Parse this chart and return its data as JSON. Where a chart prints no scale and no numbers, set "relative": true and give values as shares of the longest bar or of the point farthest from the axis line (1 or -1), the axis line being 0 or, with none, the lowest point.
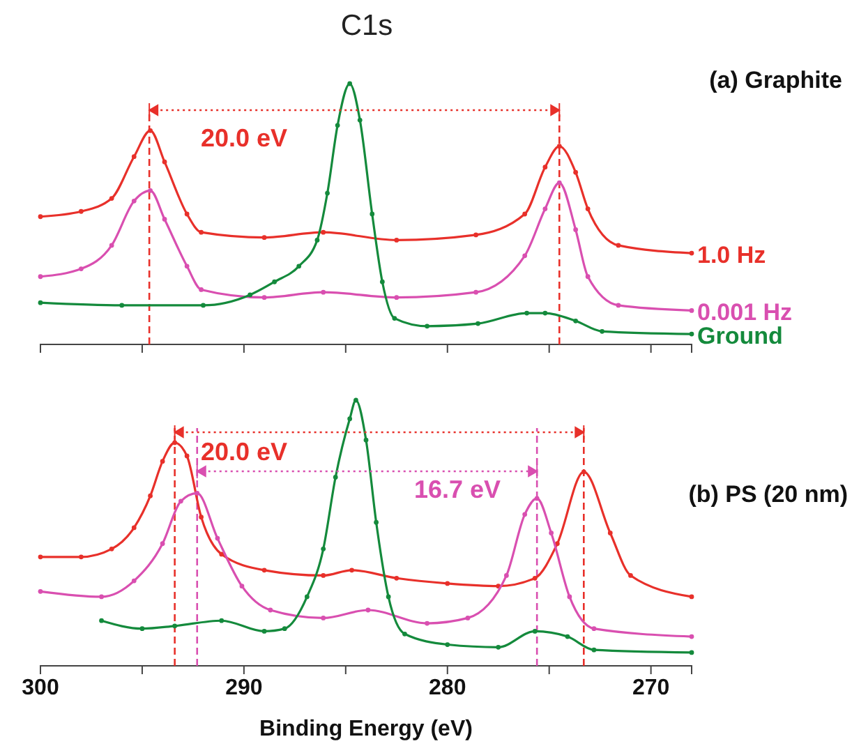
{
  "chart_data": [
    {
      "type": "line",
      "title": "C1s",
      "relative": true,
      "marker": "circle",
      "line_style": "solid",
      "tick_labels": false,
      "xlim": [
        300,
        268
      ],
      "xticks": [
        {
          "value": 300,
          "label": null
        },
        {
          "value": 295,
          "label": null
        },
        {
          "value": 290,
          "label": null
        },
        {
          "value": 285,
          "label": null
        },
        {
          "value": 280,
          "label": null
        },
        {
          "value": 275,
          "label": null
        },
        {
          "value": 270,
          "label": null
        }
      ],
      "series": [
        {
          "name": "1.0 Hz",
          "color": "#e8302a",
          "x": [
            300,
            298,
            296.5,
            295.4,
            294.6,
            293.9,
            292.8,
            292.1,
            289,
            286.1,
            282.5,
            278.6,
            276.2,
            275.2,
            274.5,
            273.7,
            273.1,
            271.6,
            268
          ],
          "values": [
            0.49,
            0.51,
            0.56,
            0.72,
            0.82,
            0.7,
            0.5,
            0.43,
            0.41,
            0.43,
            0.4,
            0.42,
            0.5,
            0.68,
            0.76,
            0.66,
            0.52,
            0.38,
            0.35
          ]
        },
        {
          "name": "0.001 Hz",
          "color": "#d94fb0",
          "x": [
            300,
            298,
            296.5,
            295.4,
            294.6,
            293.9,
            292.8,
            292.1,
            289,
            286.1,
            282.5,
            278.6,
            276.2,
            275.2,
            274.5,
            273.7,
            273.1,
            271.6,
            268
          ],
          "values": [
            0.26,
            0.29,
            0.38,
            0.55,
            0.59,
            0.48,
            0.3,
            0.21,
            0.18,
            0.2,
            0.18,
            0.2,
            0.34,
            0.52,
            0.62,
            0.44,
            0.26,
            0.15,
            0.13
          ]
        },
        {
          "name": "Ground",
          "color": "#148a3c",
          "x": [
            300,
            296,
            292,
            289.7,
            288.5,
            287.3,
            286.4,
            285.9,
            285.4,
            284.8,
            284.3,
            283.7,
            283.2,
            282.6,
            281,
            278.5,
            276.1,
            275.2,
            273.7,
            272.4,
            268
          ],
          "values": [
            0.16,
            0.15,
            0.15,
            0.19,
            0.24,
            0.3,
            0.4,
            0.58,
            0.84,
            1,
            0.86,
            0.5,
            0.24,
            0.1,
            0.07,
            0.08,
            0.12,
            0.12,
            0.09,
            0.05,
            0.04
          ]
        }
      ],
      "ref_lines": [
        {
          "axis": "x",
          "value": 294.65,
          "color": "#e8302a",
          "line_style": "dashed"
        },
        {
          "axis": "x",
          "value": 274.5,
          "color": "#e8302a",
          "line_style": "dashed"
        }
      ],
      "annotations": [
        "(a) Graphite",
        "20.0 eV"
      ]
    },
    {
      "type": "line",
      "title": "(b) PS (20 nm)",
      "xlabel": "Binding Energy (eV)",
      "relative": true,
      "marker": "circle",
      "line_style": "solid",
      "tick_labels": "x",
      "xlim": [
        300,
        268
      ],
      "xticks": [
        300,
        {
          "value": 295,
          "label": null
        },
        290,
        {
          "value": 285,
          "label": null
        },
        280,
        {
          "value": 275,
          "label": null
        },
        270
      ],
      "series": [
        {
          "color": "#e8302a",
          "x": [
            300,
            298,
            296.5,
            295.4,
            294.6,
            294,
            293.4,
            292.8,
            292.1,
            291.1,
            289,
            286.1,
            284.7,
            282.5,
            280,
            277.5,
            275.7,
            274.6,
            273.3,
            272,
            271,
            268
          ],
          "values": [
            0.41,
            0.41,
            0.44,
            0.52,
            0.64,
            0.77,
            0.84,
            0.79,
            0.56,
            0.42,
            0.36,
            0.34,
            0.36,
            0.33,
            0.31,
            0.3,
            0.33,
            0.46,
            0.73,
            0.5,
            0.34,
            0.26
          ]
        },
        {
          "color": "#d94fb0",
          "x": [
            300,
            297,
            295.4,
            294,
            293.1,
            292.3,
            291.3,
            290.1,
            288.7,
            286.1,
            283.9,
            281,
            279,
            277.1,
            276.2,
            275.6,
            274.9,
            274,
            272.8,
            268
          ],
          "values": [
            0.28,
            0.26,
            0.32,
            0.46,
            0.62,
            0.65,
            0.48,
            0.3,
            0.21,
            0.18,
            0.21,
            0.16,
            0.18,
            0.34,
            0.57,
            0.63,
            0.5,
            0.26,
            0.14,
            0.11
          ]
        },
        {
          "color": "#148a3c",
          "x": [
            297,
            295,
            293.4,
            291.1,
            289,
            288,
            286.9,
            286.1,
            285.5,
            284.8,
            284.5,
            284,
            283.5,
            282.9,
            282.1,
            280,
            277.5,
            275.7,
            274.1,
            272.8,
            268
          ],
          "values": [
            0.17,
            0.14,
            0.15,
            0.17,
            0.13,
            0.14,
            0.26,
            0.44,
            0.71,
            0.93,
            1,
            0.85,
            0.54,
            0.26,
            0.12,
            0.08,
            0.07,
            0.13,
            0.11,
            0.06,
            0.05
          ]
        }
      ],
      "ref_lines": [
        {
          "axis": "x",
          "value": 293.4,
          "color": "#e8302a",
          "line_style": "dashed"
        },
        {
          "axis": "x",
          "value": 273.3,
          "color": "#e8302a",
          "line_style": "dashed"
        },
        {
          "axis": "x",
          "value": 292.3,
          "color": "#d94fb0",
          "line_style": "dashed"
        },
        {
          "axis": "x",
          "value": 275.6,
          "color": "#d94fb0",
          "line_style": "dashed"
        }
      ],
      "annotations": [
        "20.0 eV",
        "16.7 eV"
      ]
    }
  ]
}
